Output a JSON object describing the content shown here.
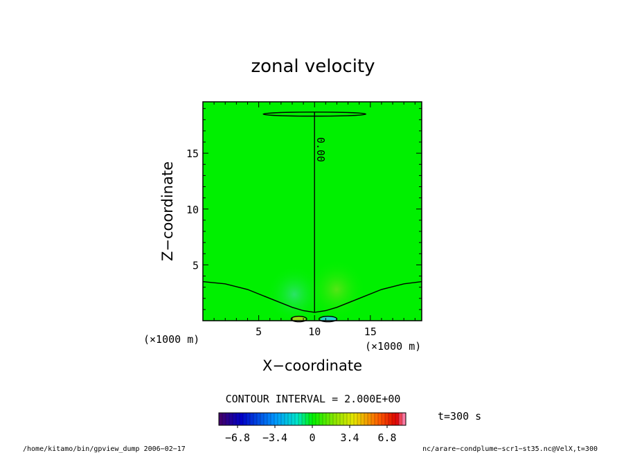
{
  "chart_data": {
    "type": "contour",
    "title": "zonal velocity",
    "xlabel": "X−coordinate",
    "ylabel": "Z−coordinate",
    "x_unit": "(×1000 m)",
    "y_unit": "(×1000 m)",
    "xlim": [
      0,
      19.6
    ],
    "ylim": [
      0,
      19.6
    ],
    "x_ticks": [
      5,
      10,
      15
    ],
    "y_ticks": [
      5,
      10,
      15
    ],
    "contour_label": "0.00",
    "contour_interval_text": "CONTOUR INTERVAL = 2.000E+00",
    "time_text": "t=300 s",
    "colorbar": {
      "range": [
        -8.5,
        8.5
      ],
      "ticks": [
        "−6.8",
        "−3.4",
        "0",
        "3.4",
        "6.8"
      ],
      "tick_values": [
        -6.8,
        -3.4,
        0,
        3.4,
        6.8
      ]
    },
    "zero_contours": [
      {
        "name": "lower",
        "x": [
          0,
          2,
          4,
          6,
          8,
          9,
          10,
          11,
          12,
          14,
          16,
          18,
          19.6
        ],
        "z": [
          3.5,
          3.3,
          2.8,
          2.0,
          1.2,
          0.9,
          0.75,
          0.9,
          1.2,
          2.0,
          2.8,
          3.3,
          3.5
        ]
      },
      {
        "name": "vertical",
        "x": [
          10,
          10
        ],
        "z": [
          0.75,
          18.7
        ]
      }
    ],
    "upper_loop": {
      "x_center": 10,
      "z_center": 18.5,
      "x_half_width": 4.6,
      "z_half_height": 0.18
    },
    "small_loop_negative": {
      "x_center": 8.6,
      "z_center": 0.15,
      "x_half_width": 0.7,
      "z_half_height": 0.25
    },
    "small_loop_positive": {
      "x_center": 11.2,
      "z_center": 0.15,
      "x_half_width": 0.8,
      "z_half_height": 0.25
    },
    "grid": false
  },
  "footer": {
    "left": "/home/kitamo/bin/gpview_dump  2006−02−17",
    "right": "nc/arare−condplume−scr1−st35.nc@VelX,t=300"
  }
}
